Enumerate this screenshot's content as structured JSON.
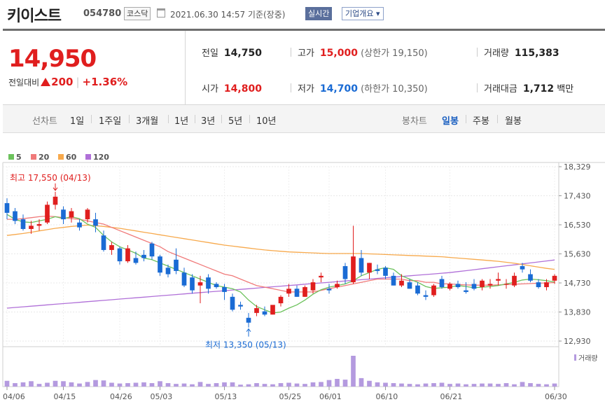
{
  "header": {
    "name": "키이스트",
    "code": "054780",
    "market": "코스닥",
    "datetime": "2021.06.30 14:57  기준(장중)",
    "realtime_label": "실시간",
    "overview_label": "기업개요 ▾"
  },
  "quote": {
    "price": "14,950",
    "change_label": "전일대비",
    "change": "200",
    "change_pct": "+1.36%",
    "prev_close_label": "전일",
    "prev_close": "14,750",
    "high_label": "고가",
    "high": "15,000",
    "upper_limit": "(상한가 19,150)",
    "volume_label": "거래량",
    "volume": "115,383",
    "open_label": "시가",
    "open": "14,800",
    "low_label": "저가",
    "low": "14,700",
    "lower_limit": "(하한가 10,350)",
    "amount_label": "거래대금",
    "amount": "1,712",
    "amount_unit": "백만"
  },
  "periods": {
    "line_label": "선차트",
    "line_items": [
      "1일",
      "1주일",
      "3개월",
      "1년",
      "3년",
      "5년",
      "10년"
    ],
    "candle_label": "봉차트",
    "candle_items": [
      "일봉",
      "주봉",
      "월봉"
    ],
    "candle_selected": "일봉"
  },
  "colors": {
    "up": "#e01e1e",
    "down": "#1a6bd4",
    "ma5": "#6cc25c",
    "ma20": "#f07a7a",
    "ma60": "#f7a94c",
    "ma120": "#b070d8",
    "volume": "#b49adf"
  },
  "chart_data": {
    "type": "candlestick",
    "legend": [
      {
        "name": "5",
        "color": "#6cc25c"
      },
      {
        "name": "20",
        "color": "#f07a7a"
      },
      {
        "name": "60",
        "color": "#f7a94c"
      },
      {
        "name": "120",
        "color": "#b070d8"
      }
    ],
    "y_ticks": [
      "18,329",
      "17,430",
      "16,530",
      "15,630",
      "14,730",
      "13,830",
      "12,930"
    ],
    "ylim": [
      12930,
      18329
    ],
    "x_labels": [
      "04/06",
      "04/15",
      "04/26",
      "05/03",
      "05/13",
      "05/25",
      "06/01",
      "06/10",
      "06/21",
      "06/30"
    ],
    "max_annotation": "최고 17,550 (04/13)",
    "min_annotation": "최저 13,350 (05/13)",
    "volume_label": "거래량",
    "candles": [
      [
        17200,
        17350,
        16700,
        16900
      ],
      [
        16950,
        17050,
        16550,
        16650
      ],
      [
        16700,
        16850,
        16350,
        16400
      ],
      [
        16400,
        16650,
        16250,
        16500
      ],
      [
        16500,
        16700,
        16350,
        16550
      ],
      [
        16600,
        17250,
        16550,
        17150
      ],
      [
        17150,
        17550,
        17000,
        17400
      ],
      [
        17000,
        17100,
        16550,
        16700
      ],
      [
        16750,
        17050,
        16600,
        16950
      ],
      [
        16600,
        16700,
        16350,
        16450
      ],
      [
        16700,
        17050,
        16600,
        17000
      ],
      [
        16700,
        16900,
        16300,
        16500
      ],
      [
        16200,
        16350,
        15700,
        15750
      ],
      [
        15750,
        16000,
        15600,
        15900
      ],
      [
        15800,
        15850,
        15300,
        15400
      ],
      [
        15400,
        15900,
        15350,
        15800
      ],
      [
        15500,
        15700,
        15300,
        15350
      ],
      [
        15600,
        15750,
        15400,
        15500
      ],
      [
        15950,
        16000,
        15450,
        15550
      ],
      [
        15550,
        15600,
        14950,
        15050
      ],
      [
        15200,
        15300,
        14900,
        15000
      ],
      [
        15450,
        15800,
        15000,
        15100
      ],
      [
        15050,
        15200,
        14600,
        14650
      ],
      [
        14900,
        15000,
        14400,
        14500
      ],
      [
        14650,
        14950,
        14100,
        14750
      ],
      [
        14900,
        15000,
        14400,
        14550
      ],
      [
        14700,
        14750,
        14550,
        14600
      ],
      [
        14600,
        14700,
        14200,
        14450
      ],
      [
        14300,
        14400,
        13850,
        13900
      ],
      [
        14050,
        14150,
        13900,
        14000
      ],
      [
        13650,
        13800,
        13350,
        13500
      ],
      [
        13800,
        14050,
        13700,
        13950
      ],
      [
        13850,
        14000,
        13700,
        13750
      ],
      [
        13750,
        14000,
        13750,
        14050
      ],
      [
        14100,
        14350,
        14000,
        14300
      ],
      [
        14400,
        14700,
        14300,
        14550
      ],
      [
        14550,
        14650,
        14300,
        14300
      ],
      [
        14300,
        14650,
        14300,
        14600
      ],
      [
        14500,
        14850,
        14400,
        14750
      ],
      [
        14900,
        15050,
        14750,
        14950
      ],
      [
        14550,
        14700,
        14400,
        14500
      ],
      [
        14600,
        14800,
        14550,
        14700
      ],
      [
        15250,
        15350,
        14700,
        14850
      ],
      [
        14750,
        16500,
        14700,
        15550
      ],
      [
        15500,
        15750,
        14950,
        15050
      ],
      [
        15050,
        15350,
        14850,
        15350
      ],
      [
        15150,
        15300,
        15000,
        15100
      ],
      [
        15200,
        15250,
        14850,
        14950
      ],
      [
        14950,
        15050,
        14650,
        14650
      ],
      [
        14650,
        15000,
        14600,
        14800
      ],
      [
        14750,
        14850,
        14550,
        14550
      ],
      [
        14650,
        14750,
        14350,
        14400
      ],
      [
        14350,
        14500,
        14200,
        14300
      ],
      [
        14350,
        14700,
        14300,
        14650
      ],
      [
        14850,
        14950,
        14550,
        14600
      ],
      [
        14550,
        14750,
        14500,
        14700
      ],
      [
        14700,
        14800,
        14550,
        14600
      ],
      [
        14500,
        14750,
        14400,
        14450
      ],
      [
        14700,
        14850,
        14500,
        14550
      ],
      [
        14600,
        14850,
        14500,
        14800
      ],
      [
        14650,
        14850,
        14550,
        14700
      ],
      [
        14800,
        15050,
        14650,
        14850
      ],
      [
        14700,
        14850,
        14550,
        14700
      ],
      [
        14650,
        15050,
        14600,
        14950
      ],
      [
        15250,
        15350,
        15050,
        15150
      ],
      [
        15000,
        15150,
        14750,
        14800
      ],
      [
        14750,
        14850,
        14550,
        14600
      ],
      [
        14600,
        14850,
        14500,
        14750
      ],
      [
        14800,
        15000,
        14700,
        14950
      ]
    ],
    "volumes": [
      30,
      18,
      22,
      28,
      14,
      20,
      30,
      28,
      22,
      16,
      24,
      34,
      32,
      20,
      16,
      18,
      20,
      22,
      18,
      28,
      18,
      14,
      16,
      12,
      24,
      14,
      18,
      22,
      22,
      10,
      12,
      18,
      14,
      12,
      18,
      20,
      16,
      14,
      22,
      24,
      34,
      40,
      36,
      160,
      44,
      30,
      22,
      20,
      18,
      16,
      14,
      12,
      16,
      18,
      20,
      14,
      16,
      12,
      14,
      16,
      16,
      14,
      18,
      12,
      24,
      18,
      14,
      12,
      16
    ],
    "ma5": [
      16850,
      16700,
      16620,
      16600,
      16650,
      16700,
      16780,
      16720,
      16780,
      16720,
      16550,
      16450,
      16200,
      16000,
      15850,
      15750,
      15650,
      15500,
      15450,
      15350,
      15250,
      15150,
      15050,
      14950,
      14850,
      14750,
      14650,
      14600,
      14550,
      14450,
      14200,
      14000,
      13900,
      13800,
      13830,
      13950,
      14050,
      14200,
      14380,
      14520,
      14600,
      14650,
      14700,
      14800,
      14950,
      15050,
      15150,
      15200,
      15150,
      14950,
      14850,
      14750,
      14620,
      14560,
      14580,
      14600,
      14650,
      14620,
      14580,
      14600,
      14620,
      14650,
      14700,
      14750,
      14820,
      14850,
      14830,
      14800,
      14760
    ],
    "ma20": [
      16700,
      16700,
      16720,
      16750,
      16780,
      16800,
      16780,
      16750,
      16720,
      16700,
      16650,
      16600,
      16550,
      16450,
      16350,
      16250,
      16150,
      16050,
      15950,
      15850,
      15700,
      15600,
      15500,
      15400,
      15300,
      15200,
      15100,
      15000,
      14950,
      14850,
      14750,
      14650,
      14600,
      14550,
      14500,
      14450,
      14450,
      14450,
      14450,
      14500,
      14550,
      14600,
      14650,
      14700,
      14750,
      14800,
      14850,
      14850,
      14850,
      14850,
      14800,
      14800,
      14750,
      14750,
      14700,
      14700,
      14680,
      14670,
      14660,
      14660,
      14660,
      14670,
      14680,
      14690,
      14700,
      14710,
      14720,
      14730,
      14740
    ],
    "ma60": [
      16200,
      16230,
      16260,
      16300,
      16340,
      16380,
      16420,
      16450,
      16480,
      16500,
      16520,
      16500,
      16480,
      16450,
      16420,
      16380,
      16340,
      16300,
      16260,
      16220,
      16180,
      16140,
      16100,
      16060,
      16020,
      15980,
      15940,
      15900,
      15870,
      15840,
      15810,
      15780,
      15750,
      15730,
      15710,
      15690,
      15680,
      15670,
      15660,
      15650,
      15640,
      15640,
      15640,
      15640,
      15640,
      15630,
      15620,
      15610,
      15600,
      15590,
      15580,
      15570,
      15560,
      15550,
      15540,
      15520,
      15500,
      15480,
      15460,
      15440,
      15420,
      15400,
      15370,
      15340,
      15300,
      15260,
      15220,
      15180,
      15150
    ],
    "ma120": [
      13950,
      13970,
      13990,
      14010,
      14030,
      14050,
      14070,
      14090,
      14110,
      14130,
      14150,
      14170,
      14190,
      14210,
      14230,
      14250,
      14270,
      14290,
      14310,
      14330,
      14350,
      14370,
      14390,
      14410,
      14430,
      14450,
      14470,
      14490,
      14510,
      14530,
      14550,
      14570,
      14590,
      14610,
      14630,
      14650,
      14670,
      14690,
      14710,
      14730,
      14750,
      14770,
      14790,
      14810,
      14830,
      14850,
      14870,
      14890,
      14910,
      14930,
      14950,
      14970,
      14990,
      15010,
      15030,
      15050,
      15080,
      15110,
      15140,
      15170,
      15200,
      15230,
      15260,
      15290,
      15320,
      15350,
      15380,
      15410,
      15440
    ]
  }
}
